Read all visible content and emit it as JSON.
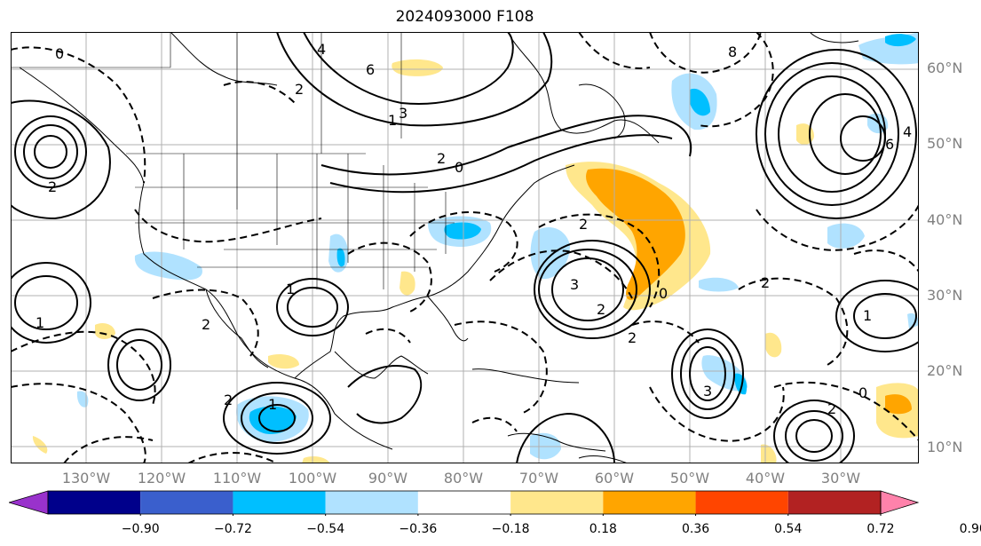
{
  "title": "2024093000 F108",
  "lat_labels": [
    "60°N",
    "50°N",
    "40°N",
    "30°N",
    "20°N",
    "10°N"
  ],
  "lon_labels": [
    "130°W",
    "120°W",
    "110°W",
    "100°W",
    "90°W",
    "80°W",
    "70°W",
    "60°W",
    "50°W",
    "40°W",
    "30°W"
  ],
  "colorbar": {
    "ticks": [
      "−0.90",
      "−0.72",
      "−0.54",
      "−0.36",
      "−0.18",
      "0.18",
      "0.36",
      "0.54",
      "0.72",
      "0.90"
    ],
    "colors": [
      "#9932cc",
      "#00008b",
      "#3a5fcd",
      "#00bfff",
      "#b0e2ff",
      "#ffffff",
      "#ffe78c",
      "#ffa500",
      "#ff4500",
      "#b22222",
      "#ff82ab"
    ]
  },
  "contour_labels": [
    "0",
    "2",
    "4",
    "6",
    "2",
    "1",
    "3",
    "8",
    "6",
    "4",
    "2",
    "0",
    "2",
    "3",
    "2",
    "1",
    "3",
    "2",
    "1",
    "0",
    "1",
    "2",
    "2",
    "0",
    "2",
    "1",
    "2"
  ],
  "colors": {
    "frame": "#000000",
    "grid": "#b0b0b0",
    "axis_text": "#808080"
  }
}
